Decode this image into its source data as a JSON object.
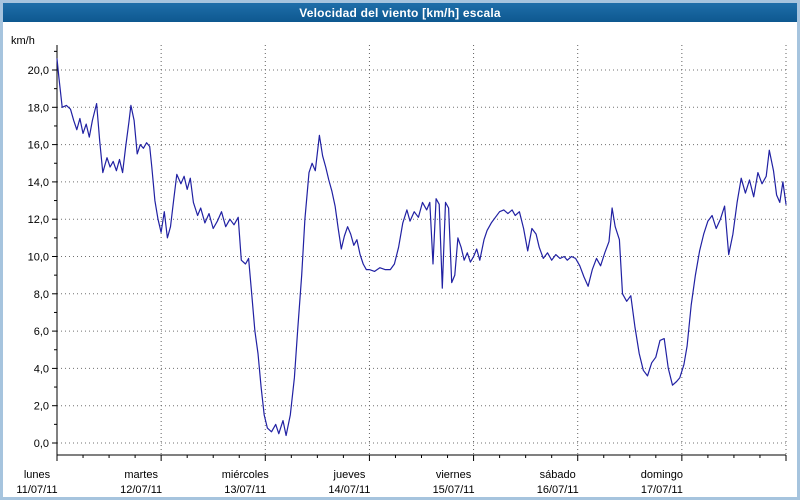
{
  "window": {
    "title": "Velocidad del viento [km/h] escala"
  },
  "chart_data": {
    "type": "line",
    "title": "Velocidad del viento [km/h] escala",
    "xlabel": "",
    "ylabel": "km/h",
    "ylim": [
      0,
      21.3
    ],
    "grid": true,
    "legend": "none",
    "line_color": "#2121a3",
    "y_tick_values": [
      0,
      2,
      4,
      6,
      8,
      10,
      12,
      14,
      16,
      18,
      20
    ],
    "y_ticks": [
      "0,0",
      "2,0",
      "4,0",
      "6,0",
      "8,0",
      "10,0",
      "12,0",
      "14,0",
      "16,0",
      "18,0",
      "20,0"
    ],
    "x_days": [
      {
        "name": "lunes",
        "date": "11/07/11"
      },
      {
        "name": "martes",
        "date": "12/07/11"
      },
      {
        "name": "miércoles",
        "date": "13/07/11"
      },
      {
        "name": "jueves",
        "date": "14/07/11"
      },
      {
        "name": "viernes",
        "date": "15/07/11"
      },
      {
        "name": "sábado",
        "date": "16/07/11"
      },
      {
        "name": "domingo",
        "date": "17/07/11"
      }
    ],
    "series": [
      {
        "name": "Velocidad del viento [km/h]",
        "color": "#2121a3",
        "points": [
          [
            0.0,
            20.6
          ],
          [
            0.02,
            19.5
          ],
          [
            0.05,
            18.0
          ],
          [
            0.09,
            18.1
          ],
          [
            0.13,
            17.9
          ],
          [
            0.16,
            17.3
          ],
          [
            0.19,
            16.8
          ],
          [
            0.22,
            17.4
          ],
          [
            0.25,
            16.6
          ],
          [
            0.28,
            17.1
          ],
          [
            0.31,
            16.4
          ],
          [
            0.34,
            17.3
          ],
          [
            0.38,
            18.2
          ],
          [
            0.41,
            16.2
          ],
          [
            0.44,
            14.5
          ],
          [
            0.48,
            15.3
          ],
          [
            0.51,
            14.8
          ],
          [
            0.54,
            15.1
          ],
          [
            0.57,
            14.6
          ],
          [
            0.6,
            15.2
          ],
          [
            0.63,
            14.5
          ],
          [
            0.66,
            15.9
          ],
          [
            0.69,
            17.2
          ],
          [
            0.71,
            18.1
          ],
          [
            0.74,
            17.3
          ],
          [
            0.77,
            15.5
          ],
          [
            0.8,
            16.0
          ],
          [
            0.83,
            15.8
          ],
          [
            0.86,
            16.1
          ],
          [
            0.89,
            15.9
          ],
          [
            0.91,
            14.8
          ],
          [
            0.94,
            13.0
          ],
          [
            0.97,
            12.0
          ],
          [
            1.0,
            11.3
          ],
          [
            1.03,
            12.4
          ],
          [
            1.06,
            11.0
          ],
          [
            1.09,
            11.6
          ],
          [
            1.12,
            13.0
          ],
          [
            1.15,
            14.4
          ],
          [
            1.19,
            13.9
          ],
          [
            1.22,
            14.3
          ],
          [
            1.25,
            13.6
          ],
          [
            1.28,
            14.2
          ],
          [
            1.31,
            12.9
          ],
          [
            1.35,
            12.2
          ],
          [
            1.38,
            12.6
          ],
          [
            1.42,
            11.8
          ],
          [
            1.46,
            12.3
          ],
          [
            1.5,
            11.5
          ],
          [
            1.54,
            11.9
          ],
          [
            1.58,
            12.4
          ],
          [
            1.62,
            11.6
          ],
          [
            1.66,
            12.0
          ],
          [
            1.7,
            11.7
          ],
          [
            1.74,
            12.1
          ],
          [
            1.77,
            9.8
          ],
          [
            1.81,
            9.6
          ],
          [
            1.84,
            9.9
          ],
          [
            1.87,
            8.0
          ],
          [
            1.9,
            6.0
          ],
          [
            1.93,
            4.8
          ],
          [
            1.96,
            3.0
          ],
          [
            1.99,
            1.5
          ],
          [
            2.02,
            0.8
          ],
          [
            2.06,
            0.6
          ],
          [
            2.1,
            1.0
          ],
          [
            2.13,
            0.5
          ],
          [
            2.17,
            1.2
          ],
          [
            2.2,
            0.4
          ],
          [
            2.24,
            1.5
          ],
          [
            2.28,
            3.5
          ],
          [
            2.31,
            6.0
          ],
          [
            2.35,
            9.0
          ],
          [
            2.38,
            12.0
          ],
          [
            2.42,
            14.5
          ],
          [
            2.45,
            15.0
          ],
          [
            2.48,
            14.6
          ],
          [
            2.52,
            16.5
          ],
          [
            2.55,
            15.4
          ],
          [
            2.58,
            14.8
          ],
          [
            2.61,
            14.1
          ],
          [
            2.64,
            13.5
          ],
          [
            2.67,
            12.7
          ],
          [
            2.7,
            11.5
          ],
          [
            2.73,
            10.4
          ],
          [
            2.76,
            11.1
          ],
          [
            2.79,
            11.6
          ],
          [
            2.82,
            11.2
          ],
          [
            2.85,
            10.6
          ],
          [
            2.88,
            10.9
          ],
          [
            2.91,
            10.1
          ],
          [
            2.94,
            9.6
          ],
          [
            2.97,
            9.3
          ],
          [
            3.0,
            9.3
          ],
          [
            3.05,
            9.2
          ],
          [
            3.1,
            9.4
          ],
          [
            3.15,
            9.3
          ],
          [
            3.2,
            9.3
          ],
          [
            3.24,
            9.6
          ],
          [
            3.28,
            10.5
          ],
          [
            3.32,
            11.8
          ],
          [
            3.36,
            12.5
          ],
          [
            3.39,
            11.9
          ],
          [
            3.43,
            12.4
          ],
          [
            3.47,
            12.1
          ],
          [
            3.51,
            12.9
          ],
          [
            3.55,
            12.5
          ],
          [
            3.58,
            12.9
          ],
          [
            3.61,
            9.6
          ],
          [
            3.64,
            13.1
          ],
          [
            3.67,
            12.8
          ],
          [
            3.7,
            8.3
          ],
          [
            3.73,
            12.9
          ],
          [
            3.76,
            12.6
          ],
          [
            3.79,
            8.6
          ],
          [
            3.82,
            9.0
          ],
          [
            3.85,
            11.0
          ],
          [
            3.88,
            10.5
          ],
          [
            3.91,
            9.8
          ],
          [
            3.94,
            10.2
          ],
          [
            3.97,
            9.7
          ],
          [
            4.0,
            10.0
          ],
          [
            4.03,
            10.4
          ],
          [
            4.06,
            9.8
          ],
          [
            4.1,
            10.9
          ],
          [
            4.13,
            11.4
          ],
          [
            4.17,
            11.8
          ],
          [
            4.21,
            12.1
          ],
          [
            4.25,
            12.4
          ],
          [
            4.29,
            12.5
          ],
          [
            4.33,
            12.3
          ],
          [
            4.37,
            12.5
          ],
          [
            4.4,
            12.2
          ],
          [
            4.44,
            12.4
          ],
          [
            4.48,
            11.5
          ],
          [
            4.52,
            10.3
          ],
          [
            4.56,
            11.5
          ],
          [
            4.6,
            11.2
          ],
          [
            4.63,
            10.5
          ],
          [
            4.67,
            9.9
          ],
          [
            4.71,
            10.2
          ],
          [
            4.75,
            9.8
          ],
          [
            4.79,
            10.1
          ],
          [
            4.83,
            9.9
          ],
          [
            4.87,
            10.0
          ],
          [
            4.9,
            9.8
          ],
          [
            4.94,
            10.0
          ],
          [
            4.98,
            9.9
          ],
          [
            5.02,
            9.5
          ],
          [
            5.06,
            8.9
          ],
          [
            5.1,
            8.4
          ],
          [
            5.14,
            9.3
          ],
          [
            5.18,
            9.9
          ],
          [
            5.22,
            9.5
          ],
          [
            5.26,
            10.2
          ],
          [
            5.3,
            10.8
          ],
          [
            5.33,
            12.6
          ],
          [
            5.36,
            11.6
          ],
          [
            5.4,
            10.9
          ],
          [
            5.43,
            8.0
          ],
          [
            5.47,
            7.6
          ],
          [
            5.51,
            7.9
          ],
          [
            5.55,
            6.2
          ],
          [
            5.59,
            4.8
          ],
          [
            5.63,
            3.9
          ],
          [
            5.67,
            3.6
          ],
          [
            5.71,
            4.3
          ],
          [
            5.75,
            4.6
          ],
          [
            5.79,
            5.5
          ],
          [
            5.83,
            5.6
          ],
          [
            5.87,
            4.0
          ],
          [
            5.91,
            3.1
          ],
          [
            5.95,
            3.3
          ],
          [
            5.98,
            3.5
          ],
          [
            6.02,
            4.2
          ],
          [
            6.05,
            5.2
          ],
          [
            6.09,
            7.4
          ],
          [
            6.13,
            9.0
          ],
          [
            6.17,
            10.3
          ],
          [
            6.21,
            11.2
          ],
          [
            6.25,
            11.9
          ],
          [
            6.29,
            12.2
          ],
          [
            6.33,
            11.5
          ],
          [
            6.37,
            12.0
          ],
          [
            6.41,
            12.7
          ],
          [
            6.45,
            10.1
          ],
          [
            6.49,
            11.2
          ],
          [
            6.53,
            12.9
          ],
          [
            6.57,
            14.2
          ],
          [
            6.61,
            13.4
          ],
          [
            6.65,
            14.1
          ],
          [
            6.69,
            13.2
          ],
          [
            6.73,
            14.5
          ],
          [
            6.77,
            13.9
          ],
          [
            6.81,
            14.3
          ],
          [
            6.84,
            15.7
          ],
          [
            6.88,
            14.6
          ],
          [
            6.91,
            13.3
          ],
          [
            6.94,
            12.9
          ],
          [
            6.97,
            14.0
          ],
          [
            7.0,
            12.8
          ]
        ]
      }
    ]
  }
}
